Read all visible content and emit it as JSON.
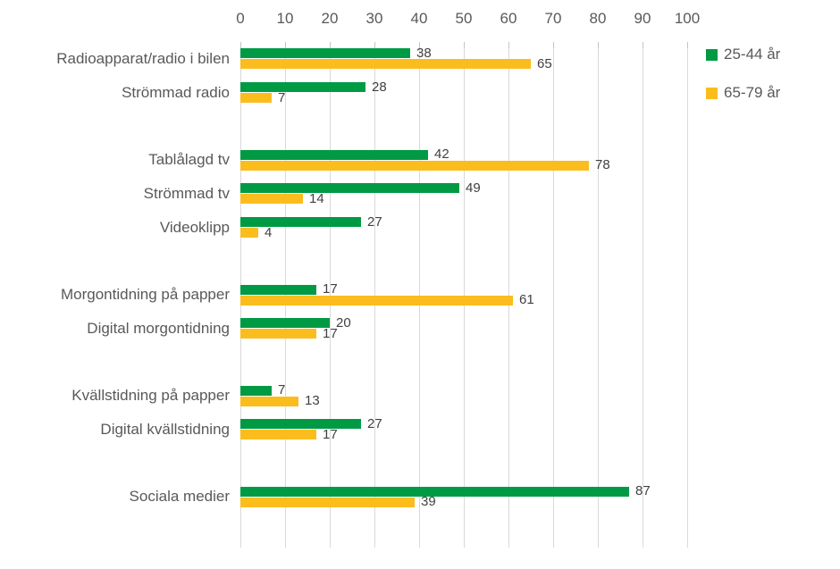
{
  "legend": {
    "position": "right",
    "items": [
      {
        "label": "25-44 år",
        "color": "#009A44"
      },
      {
        "label": "65-79 år",
        "color": "#FBBD1E"
      }
    ]
  },
  "chart_data": {
    "type": "bar",
    "orientation": "horizontal",
    "title": "",
    "xlabel": "",
    "ylabel": "",
    "axis": {
      "position": "top",
      "min": 0,
      "max": 100,
      "ticks": [
        0,
        10,
        20,
        30,
        40,
        50,
        60,
        70,
        80,
        90,
        100
      ],
      "grid": true
    },
    "series_names": [
      "25-44 år",
      "65-79 år"
    ],
    "series_colors": [
      "#009A44",
      "#FBBD1E"
    ],
    "groups": [
      {
        "rows": [
          {
            "category": "Radioapparat/radio i bilen",
            "values": [
              38,
              65
            ]
          },
          {
            "category": "Strömmad radio",
            "values": [
              28,
              7
            ]
          }
        ]
      },
      {
        "rows": [
          {
            "category": "Tablålagd tv",
            "values": [
              42,
              78
            ]
          },
          {
            "category": "Strömmad tv",
            "values": [
              49,
              14
            ]
          },
          {
            "category": "Videoklipp",
            "values": [
              27,
              4
            ]
          }
        ]
      },
      {
        "rows": [
          {
            "category": "Morgontidning på papper",
            "values": [
              17,
              61
            ]
          },
          {
            "category": "Digital morgontidning",
            "values": [
              20,
              17
            ]
          }
        ]
      },
      {
        "rows": [
          {
            "category": "Kvällstidning på papper",
            "values": [
              7,
              13
            ]
          },
          {
            "category": "Digital kvällstidning",
            "values": [
              27,
              17
            ]
          }
        ]
      },
      {
        "rows": [
          {
            "category": "Sociala medier",
            "values": [
              87,
              39
            ]
          }
        ]
      }
    ]
  },
  "colors": {
    "gridline": "#D9D9D9",
    "tick_mark": "#C3C3C3",
    "axis_text": "#595959",
    "value_text": "#404040",
    "background": "#FFFFFF"
  }
}
